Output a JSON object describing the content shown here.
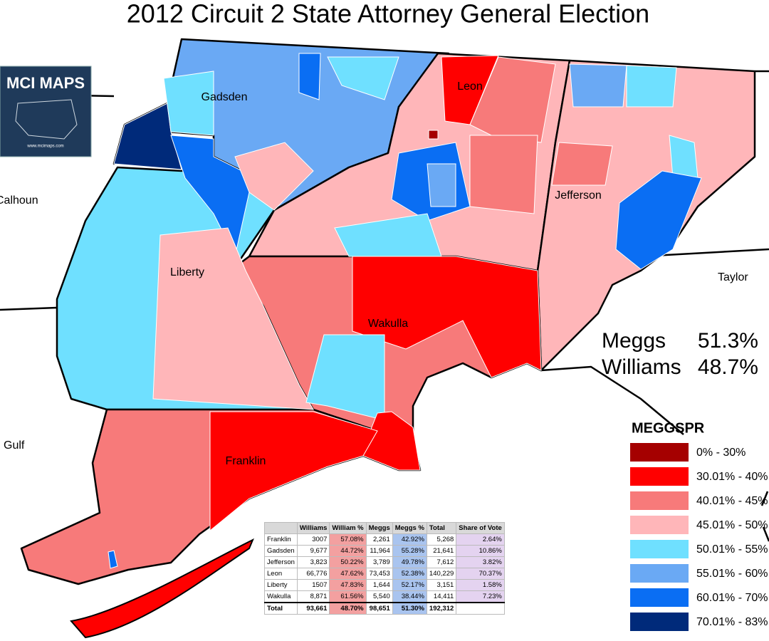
{
  "title": "2012 Circuit 2 State Attorney General Election",
  "logo": {
    "name": "MCI MAPS",
    "url": "www.mcimaps.com"
  },
  "counties": [
    "Gadsden",
    "Leon",
    "Jefferson",
    "Liberty",
    "Wakulla",
    "Franklin"
  ],
  "neighbors": [
    "Calhoun",
    "Taylor",
    "Gulf"
  ],
  "results": [
    {
      "name": "Meggs",
      "pct": "51.3%"
    },
    {
      "name": "Williams",
      "pct": "48.7%"
    }
  ],
  "legend": {
    "title": "MEGGSPR",
    "items": [
      {
        "label": "0% - 30%",
        "color": "#a50000"
      },
      {
        "label": "30.01% - 40%",
        "color": "#ff0000"
      },
      {
        "label": "40.01% - 45%",
        "color": "#f77a7a"
      },
      {
        "label": "45.01% - 50%",
        "color": "#ffb6b9"
      },
      {
        "label": "50.01% - 55%",
        "color": "#6fe0ff"
      },
      {
        "label": "55.01% - 60%",
        "color": "#6aa9f4"
      },
      {
        "label": "60.01% - 70%",
        "color": "#0a6ef3"
      },
      {
        "label": "70.01% - 83%",
        "color": "#002a7a"
      }
    ]
  },
  "table": {
    "header": [
      "Williams",
      "William %",
      "Meggs",
      "Meggs %",
      "Total",
      "Share of Vote"
    ],
    "rows": [
      [
        "Franklin",
        "3007",
        "57.08%",
        "2,261",
        "42.92%",
        "5,268",
        "2.64%"
      ],
      [
        "Gadsden",
        "9,677",
        "44.72%",
        "11,964",
        "55.28%",
        "21,641",
        "10.86%"
      ],
      [
        "Jefferson",
        "3,823",
        "50.22%",
        "3,789",
        "49.78%",
        "7,612",
        "3.82%"
      ],
      [
        "Leon",
        "66,776",
        "47.62%",
        "73,453",
        "52.38%",
        "140,229",
        "70.37%"
      ],
      [
        "Liberty",
        "1507",
        "47.83%",
        "1,644",
        "52.17%",
        "3,151",
        "1.58%"
      ],
      [
        "Wakulla",
        "8,871",
        "61.56%",
        "5,540",
        "38.44%",
        "14,411",
        "7.23%"
      ]
    ],
    "total": [
      "Total",
      "93,661",
      "48.70%",
      "98,651",
      "51.30%",
      "192,312"
    ]
  }
}
